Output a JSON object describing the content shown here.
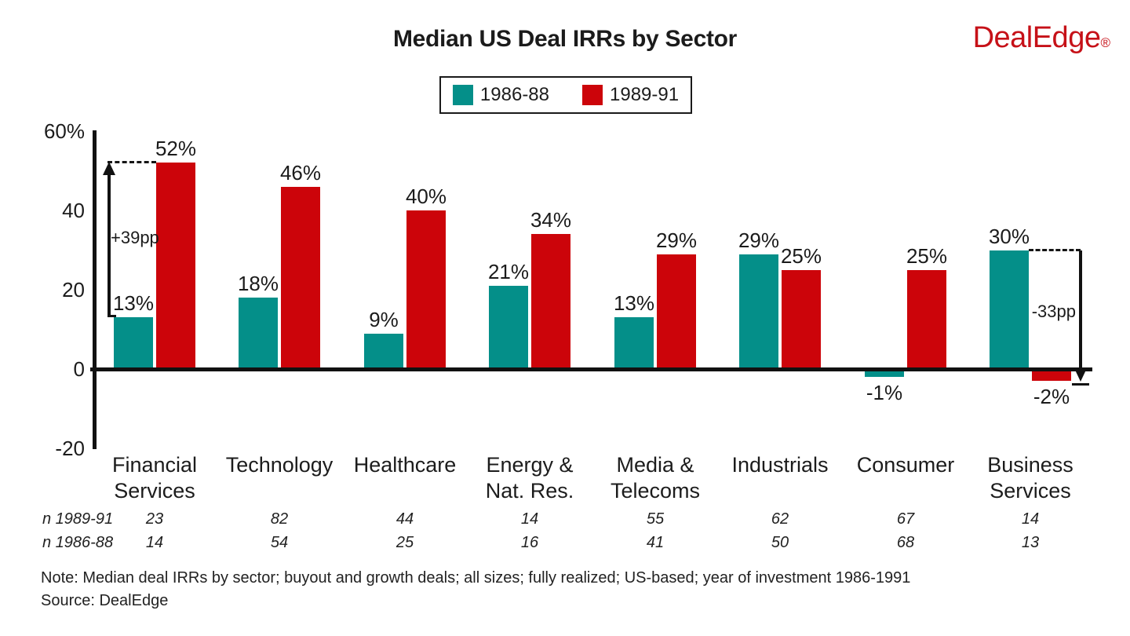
{
  "header": {
    "title": "Median US Deal IRRs by Sector",
    "logo_text": "DealEdge",
    "logo_mark": "®",
    "logo_color": "#c61118"
  },
  "legend": {
    "items": [
      {
        "label": "1986-88",
        "color": "#048f89"
      },
      {
        "label": "1989-91",
        "color": "#cc040a"
      }
    ]
  },
  "chart_data": {
    "type": "bar",
    "title": "Median US Deal IRRs by Sector",
    "categories": [
      "Financial Services",
      "Technology",
      "Healthcare",
      "Energy & Nat. Res.",
      "Media & Telecoms",
      "Industrials",
      "Consumer",
      "Business Services"
    ],
    "category_label_lines": [
      [
        "Financial",
        "Services"
      ],
      [
        "Technology"
      ],
      [
        "Healthcare"
      ],
      [
        "Energy &",
        "Nat. Res."
      ],
      [
        "Media &",
        "Telecoms"
      ],
      [
        "Industrials"
      ],
      [
        "Consumer"
      ],
      [
        "Business",
        "Services"
      ]
    ],
    "series": [
      {
        "name": "1986-88",
        "color": "#048f89",
        "values": [
          13,
          18,
          9,
          21,
          13,
          29,
          -1,
          30
        ]
      },
      {
        "name": "1989-91",
        "color": "#cc040a",
        "values": [
          52,
          46,
          40,
          34,
          29,
          25,
          25,
          -2
        ]
      }
    ],
    "value_suffix": "%",
    "ylim": [
      -20,
      60
    ],
    "yticks": [
      {
        "label": "60%",
        "value": 60
      },
      {
        "label": "40",
        "value": 40
      },
      {
        "label": "20",
        "value": 20
      },
      {
        "label": "0",
        "value": 0
      },
      {
        "label": "-20",
        "value": -20
      }
    ],
    "grid": false,
    "legend_position": "top-center",
    "annotations": [
      {
        "text": "+39pp",
        "category_index": 0,
        "from_value": 13,
        "to_value": 52,
        "direction": "up",
        "side": "left"
      },
      {
        "text": "-33pp",
        "category_index": 7,
        "from_value": 30,
        "to_value": -2,
        "direction": "down",
        "side": "right"
      }
    ],
    "n_rows": [
      {
        "label": "n 1989-91",
        "values": [
          "23",
          "82",
          "44",
          "14",
          "55",
          "62",
          "67",
          "14"
        ]
      },
      {
        "label": "n 1986-88",
        "values": [
          "14",
          "54",
          "25",
          "16",
          "41",
          "50",
          "68",
          "13"
        ]
      }
    ]
  },
  "footer": {
    "note": "Note: Median deal IRRs by sector; buyout and growth deals; all sizes; fully realized; US-based; year of investment 1986-1991",
    "source": "Source: DealEdge"
  }
}
